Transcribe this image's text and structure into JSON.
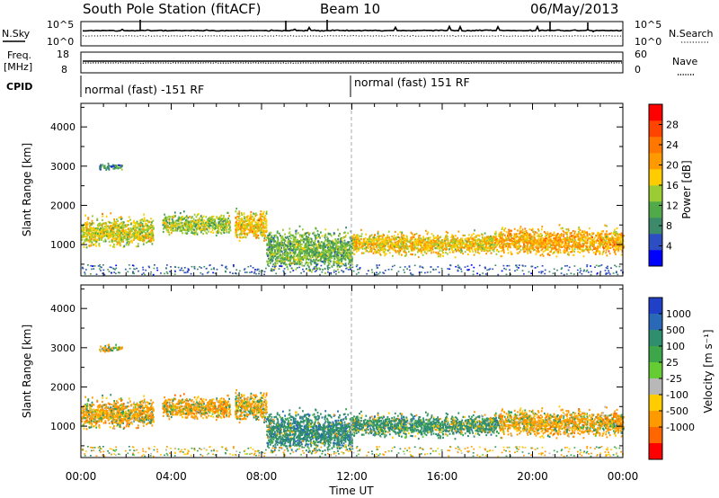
{
  "header": {
    "station": "South Pole Station (fitACF)",
    "beam": "Beam 10",
    "date": "06/May/2013"
  },
  "top_panels": {
    "nsky_label": "N.Sky",
    "nsky_ticks": [
      "10^5",
      "10^0"
    ],
    "nsearch_label": "N.Search",
    "nsearch_ticks": [
      "10^5",
      "10^0"
    ],
    "freq_label": "Freq.",
    "freq_unit": "[MHz]",
    "freq_ticks": [
      "18",
      "8"
    ],
    "nave_label": "Nave",
    "nave_ticks": [
      "60",
      "0"
    ],
    "cpid_label": "CPID",
    "cpid_segments": [
      {
        "label": "normal (fast) -151 RF",
        "start_hour": 0
      },
      {
        "label": "normal (fast) 151 RF",
        "start_hour": 12
      }
    ]
  },
  "axis": {
    "ylabel": "Slant Range [km]",
    "xlabel": "Time UT",
    "x_ticks": [
      "00:00",
      "04:00",
      "08:00",
      "12:00",
      "16:00",
      "20:00",
      "00:00"
    ],
    "y_ticks": [
      "1000",
      "2000",
      "3000",
      "4000"
    ]
  },
  "power_colorbar": {
    "label": "Power [dB]",
    "ticks": [
      "4",
      "8",
      "12",
      "16",
      "20",
      "24",
      "28"
    ],
    "colors": [
      "#0000ff",
      "#2d4ec2",
      "#3d8a6a",
      "#52a94a",
      "#9ccc33",
      "#ffcc00",
      "#ff9900",
      "#ff7700",
      "#ff4400",
      "#ff0000"
    ]
  },
  "velocity_colorbar": {
    "label": "Velocity [m s⁻¹]",
    "ticks": [
      "1000",
      "500",
      "100",
      "25",
      "-25",
      "-100",
      "-500",
      "-1000"
    ],
    "colors": [
      "#2140c8",
      "#2a68b8",
      "#2f8e6e",
      "#3ea64a",
      "#66cc33",
      "#b8b8b8",
      "#ffcc00",
      "#ff9900",
      "#ff6600",
      "#ff0000"
    ]
  },
  "chart_data": [
    {
      "type": "heatmap",
      "name": "power",
      "xlabel": "Time UT",
      "ylabel": "Slant Range [km]",
      "xlim": [
        0,
        24
      ],
      "ylim": [
        200,
        4600
      ],
      "x_tick_hours": [
        0,
        4,
        8,
        12,
        16,
        20,
        24
      ],
      "y_tick_values": [
        1000,
        2000,
        3000,
        4000
      ],
      "colorbar_label": "Power [dB]",
      "colorbar_ticks": [
        4,
        8,
        12,
        16,
        20,
        24,
        28
      ],
      "colorbar_range": [
        0,
        32
      ],
      "bands": [
        {
          "t0": 0.0,
          "t1": 3.2,
          "r_center": 1350,
          "r_width": 900,
          "value_mean": 16
        },
        {
          "t0": 3.6,
          "t1": 6.6,
          "r_center": 1550,
          "r_width": 650,
          "value_mean": 14
        },
        {
          "t0": 6.8,
          "t1": 8.2,
          "r_center": 1500,
          "r_width": 900,
          "value_mean": 18
        },
        {
          "t0": 8.2,
          "t1": 12.0,
          "r_center": 900,
          "r_width": 1200,
          "value_mean": 12
        },
        {
          "t0": 12.0,
          "t1": 18.5,
          "r_center": 1050,
          "r_width": 700,
          "value_mean": 18
        },
        {
          "t0": 18.5,
          "t1": 24.0,
          "r_center": 1100,
          "r_width": 800,
          "value_mean": 20
        },
        {
          "t0": 0.8,
          "t1": 1.8,
          "r_center": 3000,
          "r_width": 200,
          "value_mean": 8
        }
      ]
    },
    {
      "type": "heatmap",
      "name": "velocity",
      "xlabel": "Time UT",
      "ylabel": "Slant Range [km]",
      "xlim": [
        0,
        24
      ],
      "ylim": [
        200,
        4600
      ],
      "x_tick_hours": [
        0,
        4,
        8,
        12,
        16,
        20,
        24
      ],
      "y_tick_values": [
        1000,
        2000,
        3000,
        4000
      ],
      "colorbar_label": "Velocity [m s⁻¹]",
      "colorbar_ticks": [
        1000,
        500,
        100,
        25,
        -25,
        -100,
        -500,
        -1000
      ],
      "bands": [
        {
          "t0": 0.0,
          "t1": 3.2,
          "r_center": 1350,
          "r_width": 900,
          "value_mean": -150
        },
        {
          "t0": 3.6,
          "t1": 6.6,
          "r_center": 1500,
          "r_width": 700,
          "value_mean": -200
        },
        {
          "t0": 6.8,
          "t1": 8.2,
          "r_center": 1500,
          "r_width": 900,
          "value_mean": -100
        },
        {
          "t0": 8.2,
          "t1": 12.0,
          "r_center": 900,
          "r_width": 1200,
          "value_mean": 300
        },
        {
          "t0": 12.0,
          "t1": 18.5,
          "r_center": 1050,
          "r_width": 700,
          "value_mean": 200
        },
        {
          "t0": 18.5,
          "t1": 24.0,
          "r_center": 1100,
          "r_width": 800,
          "value_mean": -150
        },
        {
          "t0": 0.8,
          "t1": 1.8,
          "r_center": 3000,
          "r_width": 200,
          "value_mean": -50
        }
      ]
    }
  ]
}
